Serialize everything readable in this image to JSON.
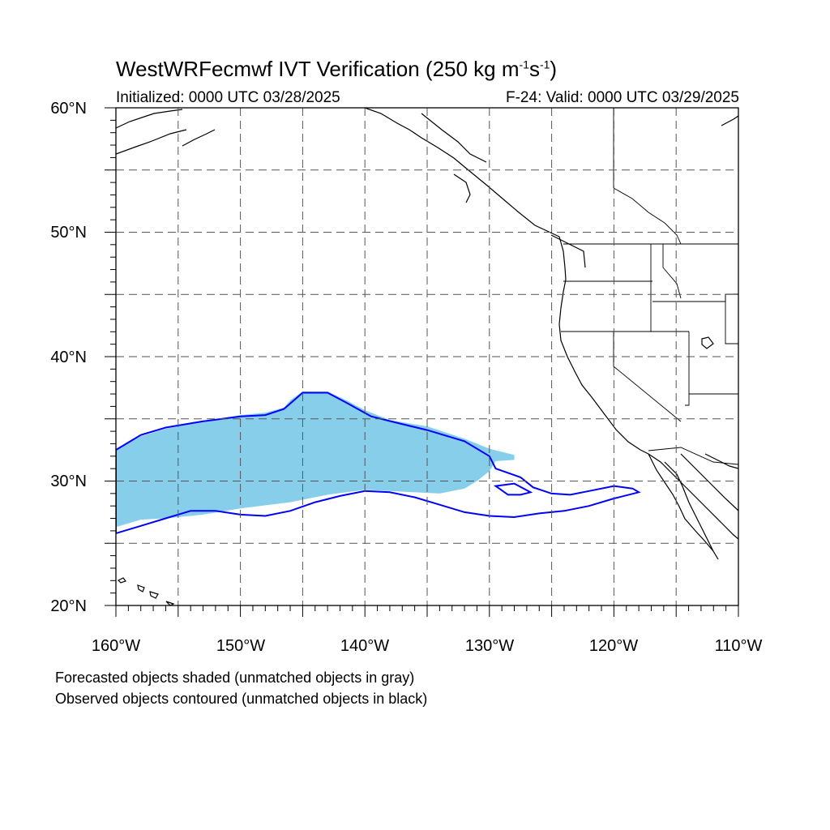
{
  "title": {
    "model": "WestWRFecmwf IVT Verification",
    "paren_open": " (250 kg m",
    "exp1": "-1",
    "unit_s": "s",
    "exp2": "-1",
    "paren_close": ")"
  },
  "initialized": "Initialized: 0000 UTC 03/28/2025",
  "valid": "F-24: Valid: 0000 UTC 03/29/2025",
  "lat_labels": [
    "60°N",
    "50°N",
    "40°N",
    "30°N",
    "20°N"
  ],
  "lon_labels": [
    "160°W",
    "150°W",
    "140°W",
    "130°W",
    "120°W",
    "110°W"
  ],
  "legend": {
    "line1": "Forecasted objects shaded (unmatched objects in gray)",
    "line2": "Observed objects contoured (unmatched objects in black)"
  },
  "colors": {
    "forecast_fill": "#87ceeb",
    "observed_contour": "#0000ff",
    "coastline": "#000000",
    "gridline": "#555555"
  },
  "map_extent": {
    "lon_min": -160,
    "lon_max": -110,
    "lat_min": 20,
    "lat_max": 60
  },
  "chart_data": {
    "type": "map",
    "forecast_object": {
      "label": "Forecasted objects shaded",
      "polygon_lonlat": [
        [
          -160,
          32.6
        ],
        [
          -158,
          33.6
        ],
        [
          -156,
          34.2
        ],
        [
          -153,
          34.8
        ],
        [
          -150,
          35.3
        ],
        [
          -148,
          35.5
        ],
        [
          -146.5,
          35.9
        ],
        [
          -146,
          36.5
        ],
        [
          -145,
          37.2
        ],
        [
          -143,
          37.2
        ],
        [
          -141.5,
          36.5
        ],
        [
          -140,
          35.7
        ],
        [
          -138,
          34.9
        ],
        [
          -135,
          34.4
        ],
        [
          -132,
          33.4
        ],
        [
          -130,
          32.6
        ],
        [
          -128,
          32.1
        ],
        [
          -128,
          31.7
        ],
        [
          -129.5,
          31.6
        ],
        [
          -130,
          30.8
        ],
        [
          -131,
          30
        ],
        [
          -132,
          29.4
        ],
        [
          -134,
          29
        ],
        [
          -138,
          29.2
        ],
        [
          -140,
          29.3
        ],
        [
          -143,
          28.9
        ],
        [
          -146,
          28.3
        ],
        [
          -150,
          27.8
        ],
        [
          -153,
          27.3
        ],
        [
          -156,
          27
        ],
        [
          -158,
          26.9
        ],
        [
          -160,
          26.3
        ]
      ]
    },
    "observed_object": {
      "label": "Observed objects contoured",
      "polygon_lonlat": [
        [
          -160,
          32.5
        ],
        [
          -158,
          33.7
        ],
        [
          -156,
          34.3
        ],
        [
          -153,
          34.8
        ],
        [
          -150,
          35.2
        ],
        [
          -148,
          35.3
        ],
        [
          -146.5,
          35.8
        ],
        [
          -145,
          37.1
        ],
        [
          -143,
          37.1
        ],
        [
          -141.5,
          36.3
        ],
        [
          -139.5,
          35.2
        ],
        [
          -137.5,
          34.7
        ],
        [
          -135,
          34.1
        ],
        [
          -132,
          33.2
        ],
        [
          -130,
          32
        ],
        [
          -129.5,
          31
        ],
        [
          -127.5,
          30.3
        ],
        [
          -126.5,
          29.5
        ],
        [
          -125,
          29
        ],
        [
          -123.5,
          28.9
        ],
        [
          -122,
          29.2
        ],
        [
          -120,
          29.6
        ],
        [
          -118.5,
          29.4
        ],
        [
          -118,
          29.1
        ],
        [
          -120,
          28.6
        ],
        [
          -122,
          28
        ],
        [
          -124,
          27.6
        ],
        [
          -126,
          27.4
        ],
        [
          -128,
          27.1
        ],
        [
          -130,
          27.2
        ],
        [
          -132,
          27.5
        ],
        [
          -134,
          28.1
        ],
        [
          -136,
          28.7
        ],
        [
          -138,
          29.1
        ],
        [
          -140,
          29.2
        ],
        [
          -142,
          28.8
        ],
        [
          -144,
          28.3
        ],
        [
          -146,
          27.6
        ],
        [
          -148,
          27.2
        ],
        [
          -150,
          27.3
        ],
        [
          -152,
          27.6
        ],
        [
          -154,
          27.6
        ],
        [
          -156,
          27
        ],
        [
          -158,
          26.4
        ],
        [
          -160,
          25.8
        ]
      ],
      "secondary_polygon_lonlat": [
        [
          -129.5,
          29.6
        ],
        [
          -128,
          29.8
        ],
        [
          -126.7,
          29.1
        ],
        [
          -127.5,
          28.9
        ],
        [
          -128.5,
          28.9
        ]
      ]
    }
  }
}
